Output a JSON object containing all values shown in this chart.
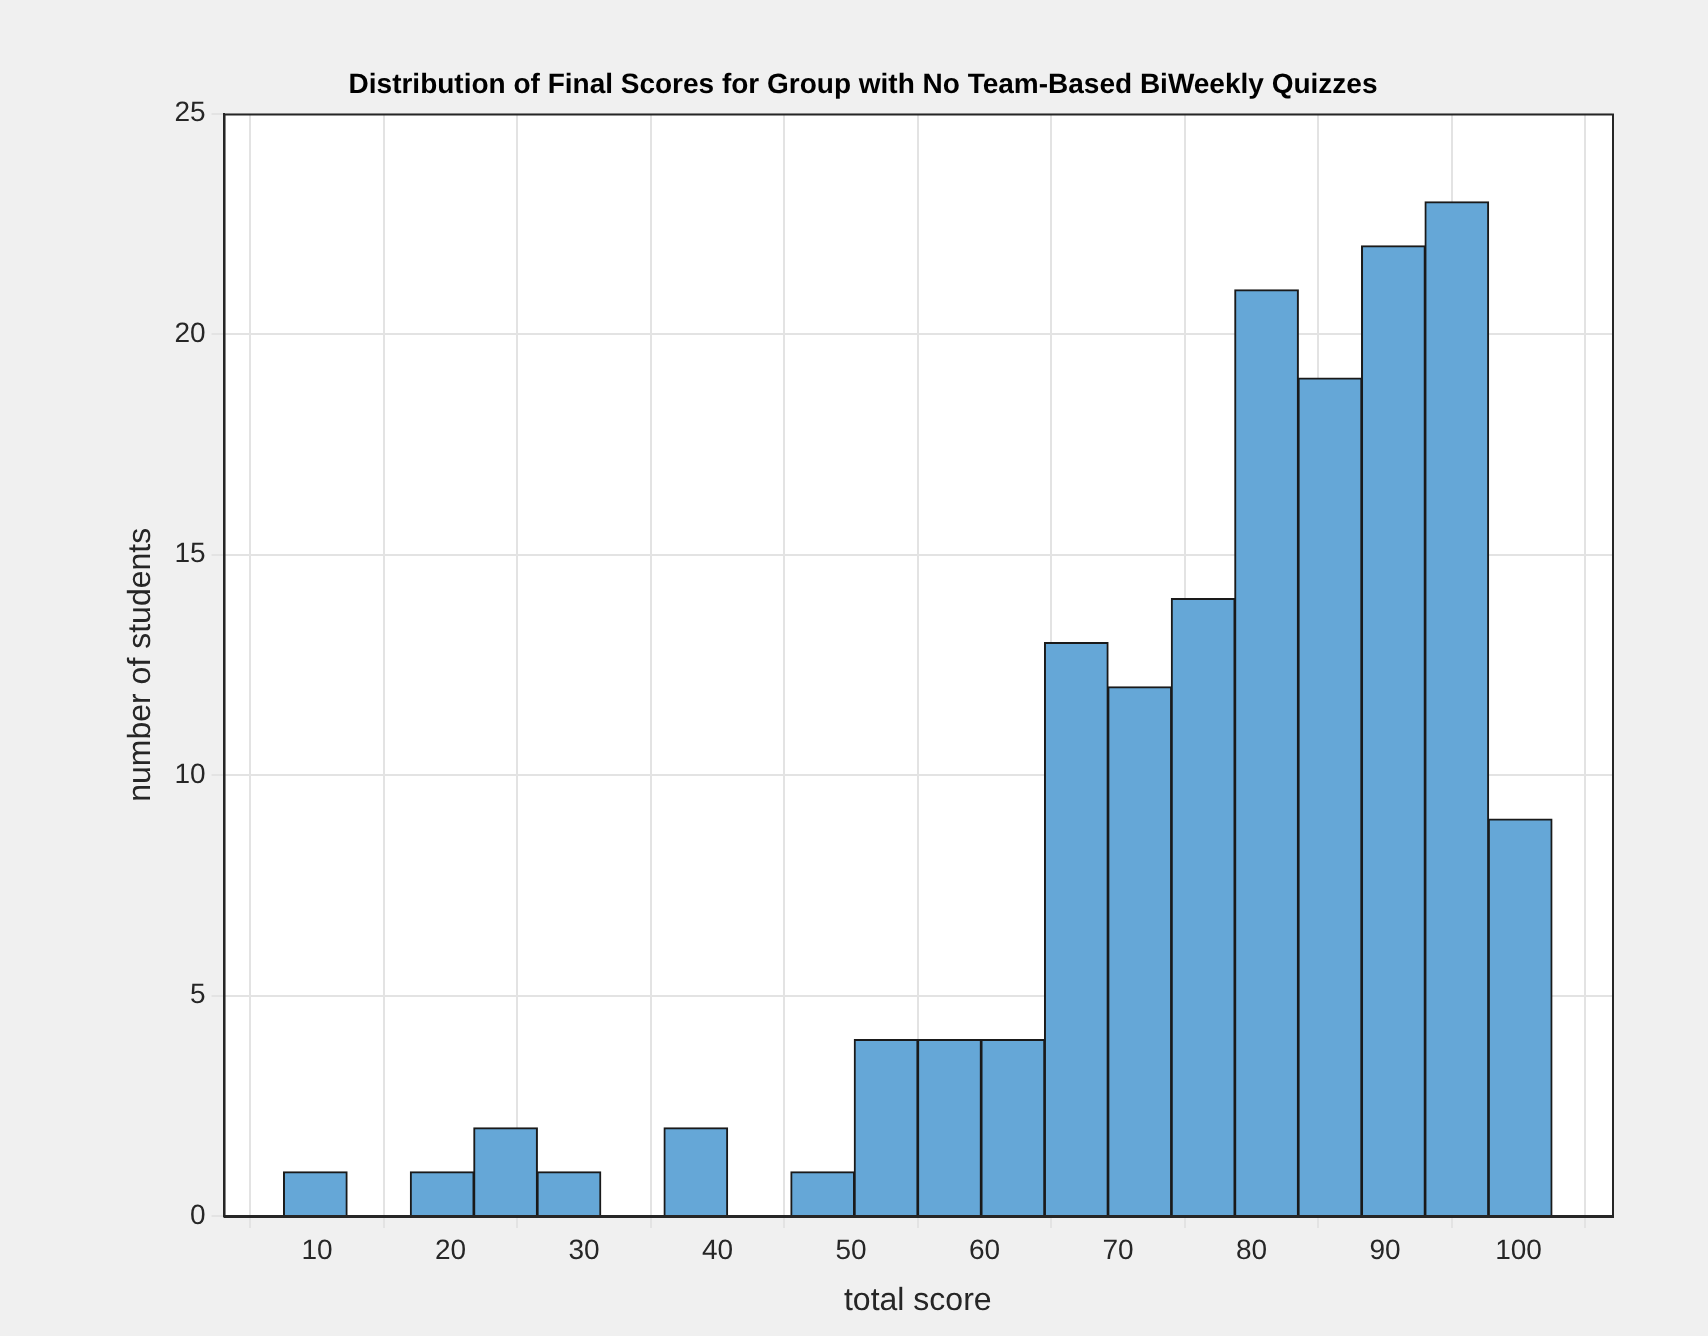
{
  "chart_data": {
    "type": "histogram",
    "title": "Distribution of Final Scores for Group with No Team-Based BiWeekly Quizzes",
    "xlabel": "total score",
    "ylabel": "number of students",
    "bins": [
      7.5,
      12.25,
      17,
      21.75,
      26.5,
      31.25,
      36,
      40.75,
      45.5,
      50.25,
      55,
      59.75,
      64.5,
      69.25,
      74,
      78.75,
      83.5,
      88.25,
      93,
      97.75,
      102.5
    ],
    "values": [
      1,
      0,
      1,
      2,
      1,
      0,
      2,
      0,
      1,
      4,
      4,
      4,
      13,
      12,
      14,
      21,
      19,
      22,
      23,
      9
    ],
    "color": "#65a7d7",
    "xlim": [
      3,
      107
    ],
    "xticks": [
      10,
      20,
      30,
      40,
      50,
      60,
      70,
      80,
      90,
      100
    ],
    "ylim": [
      0,
      25
    ],
    "yticks": [
      0,
      5,
      10,
      15,
      20,
      25
    ],
    "grid": true,
    "legend": false
  }
}
